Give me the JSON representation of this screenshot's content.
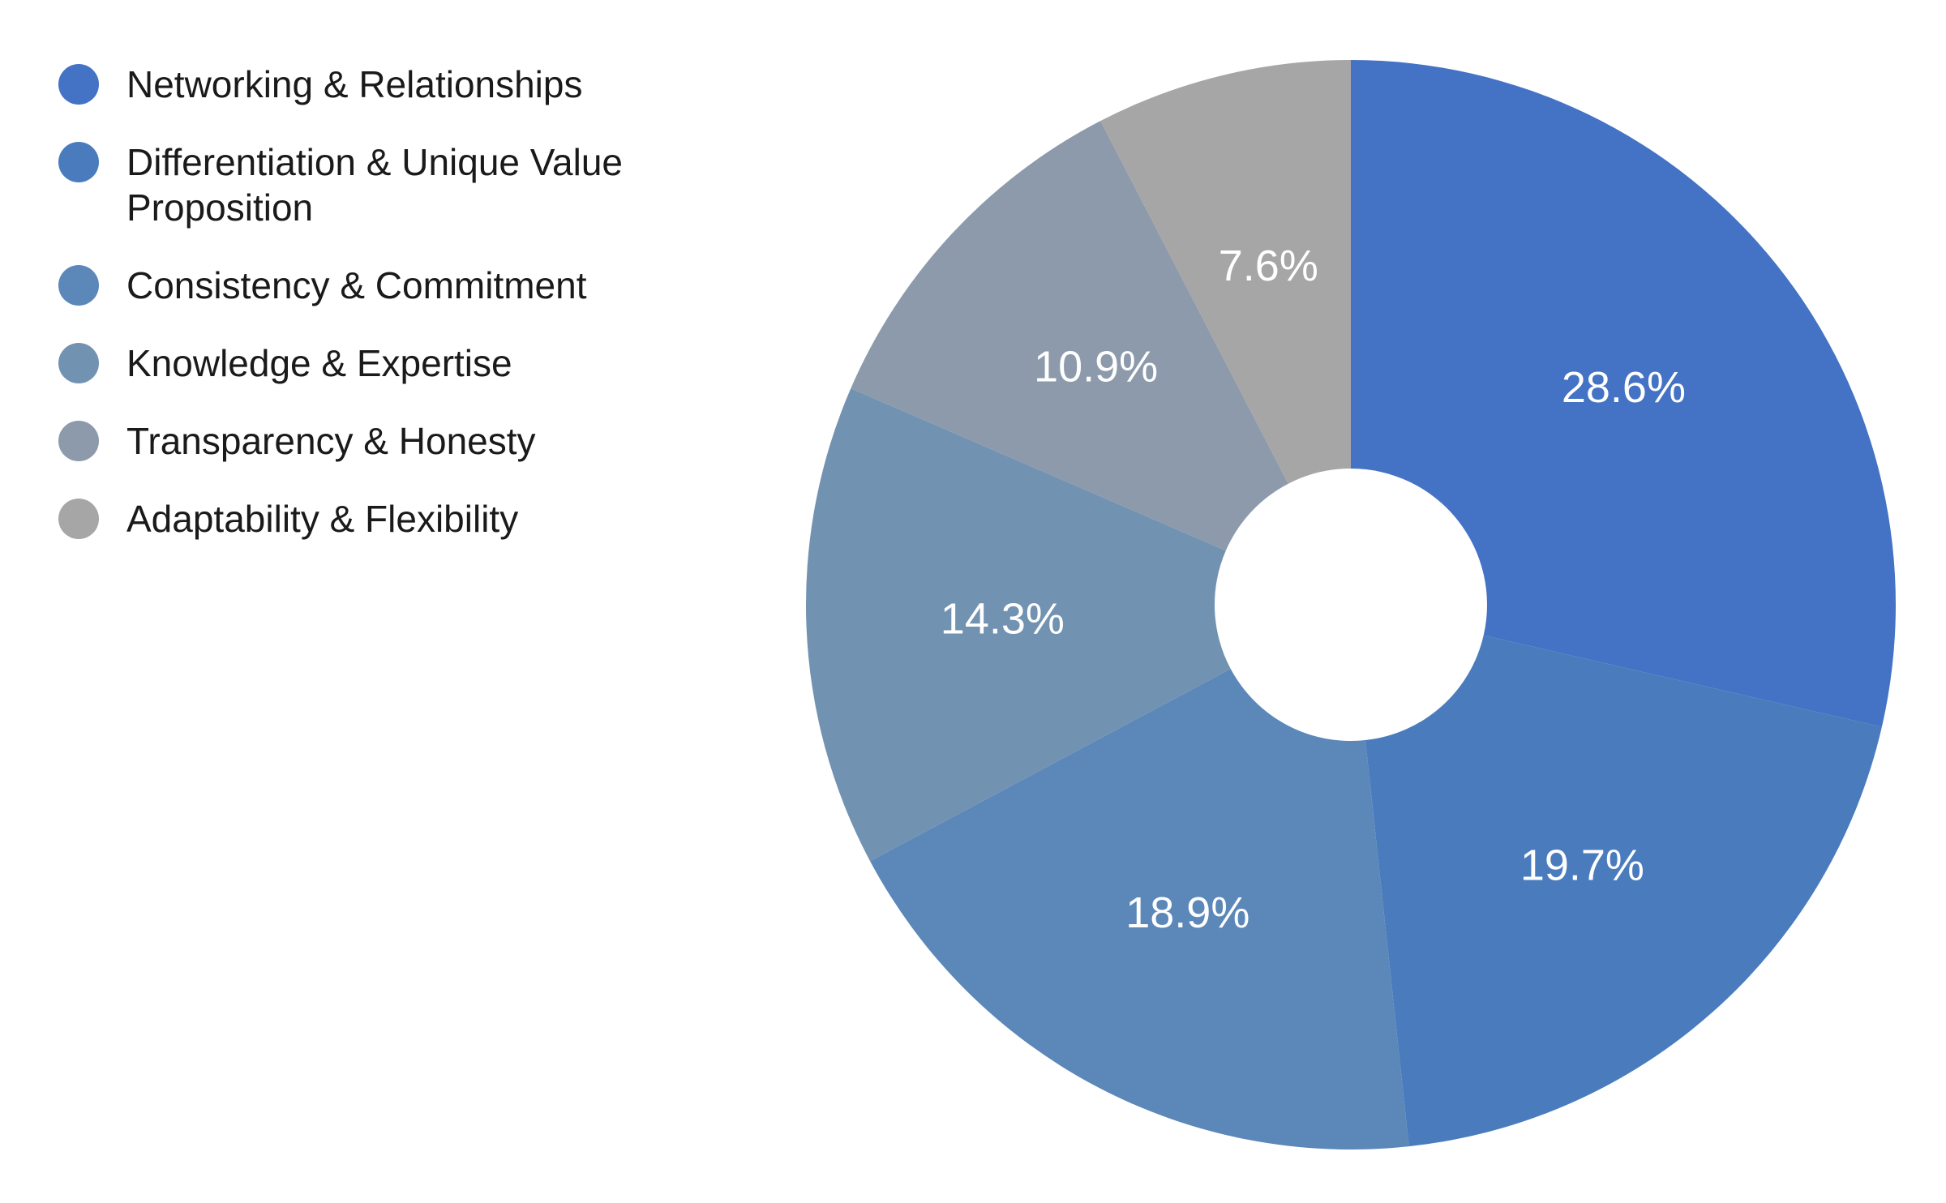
{
  "chart_data": {
    "type": "pie",
    "donut": true,
    "title": "",
    "legend_position": "left",
    "categories": [
      "Networking & Relationships",
      "Differentiation & Unique Value Proposition",
      "Consistency & Commitment",
      "Knowledge & Expertise",
      "Transparency & Honesty",
      "Adaptability & Flexibility"
    ],
    "values": [
      28.6,
      19.7,
      18.9,
      14.3,
      10.9,
      7.6
    ],
    "labels": [
      "28.6%",
      "19.7%",
      "18.9%",
      "14.3%",
      "10.9%",
      "7.6%"
    ],
    "colors": [
      "#4472C4",
      "#4A7CBD",
      "#5B87B9",
      "#7292B2",
      "#8C9AAB",
      "#A6A6A6"
    ],
    "label_color": "#FFFFFF"
  }
}
